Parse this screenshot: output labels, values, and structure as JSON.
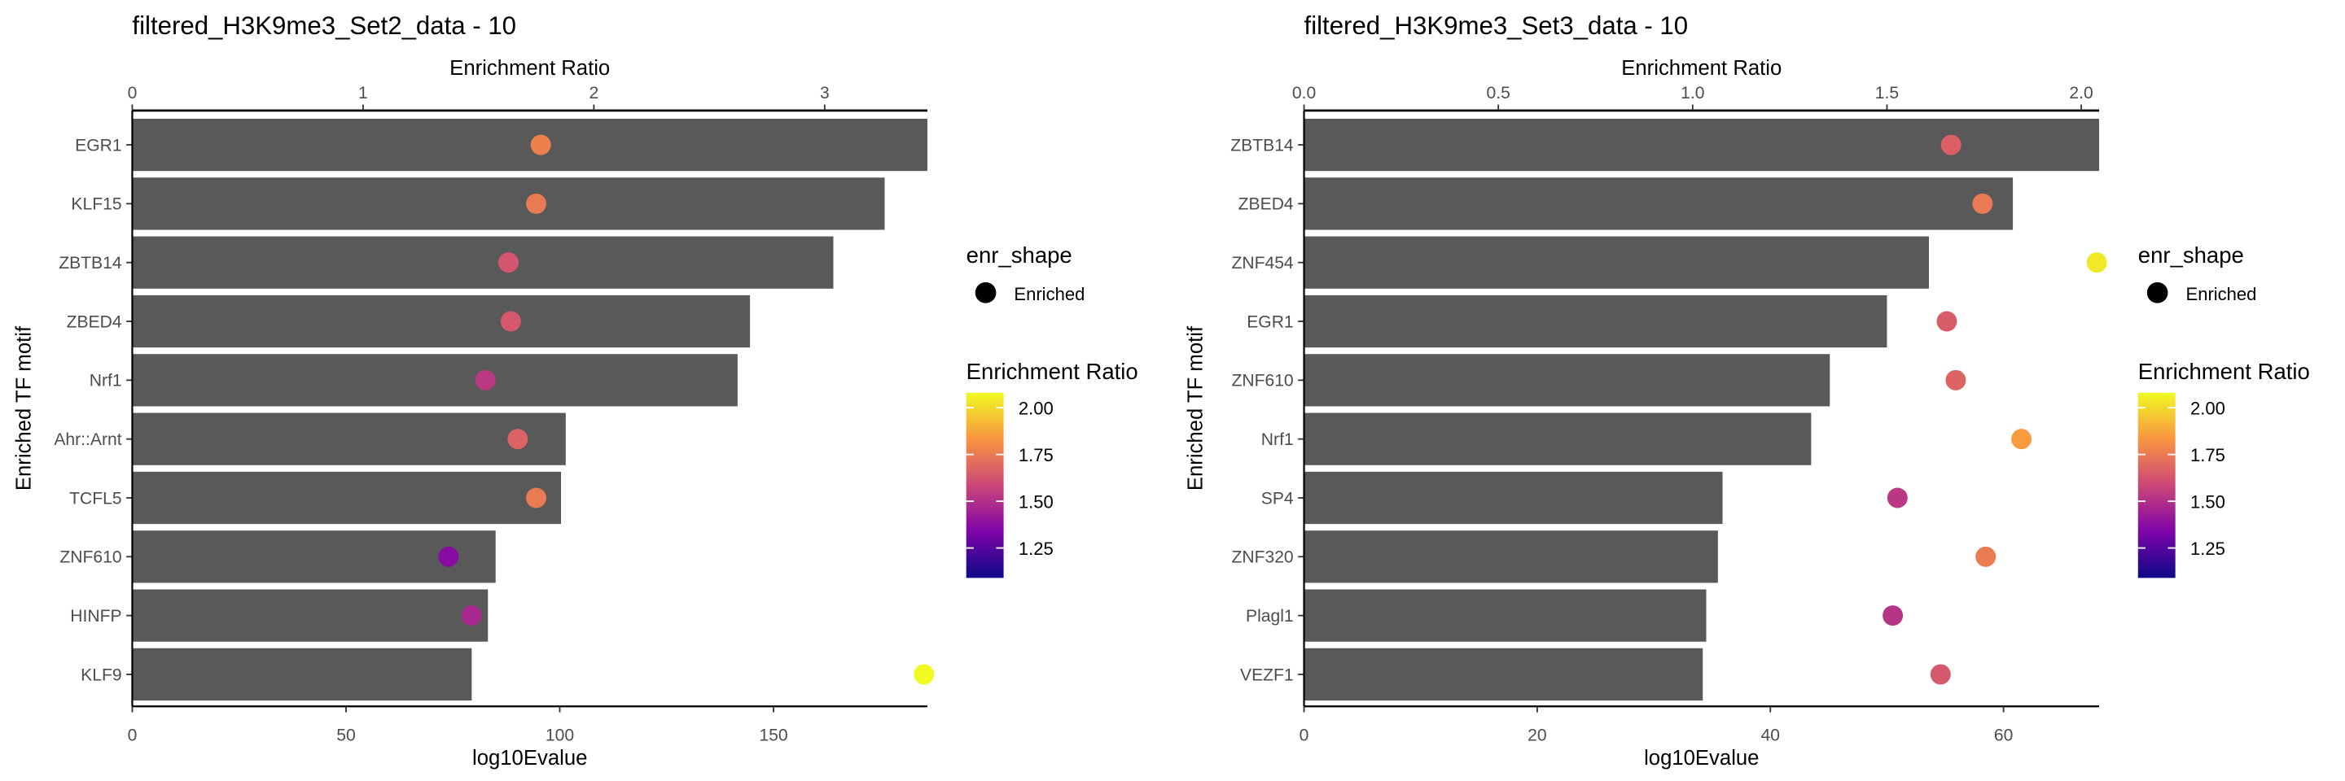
{
  "legend": {
    "shape_title": "enr_shape",
    "shape_label": "Enriched",
    "color_title": "Enrichment Ratio",
    "color_ticks": [
      "2.00",
      "1.75",
      "1.50",
      "1.25"
    ],
    "color_tick_values": [
      2.0,
      1.75,
      1.5,
      1.25
    ],
    "color_range": [
      1.09,
      2.08
    ],
    "palette": [
      "#0d0887",
      "#7e03a8",
      "#cc4778",
      "#f89540",
      "#f0f921"
    ]
  },
  "chart_data": [
    {
      "type": "bar",
      "title": "filtered_H3K9me3_Set2_data - 10",
      "xlabel": "log10Evalue",
      "ylabel": "Enriched TF motif",
      "x2label": "Enrichment Ratio",
      "xlim": [
        0,
        186
      ],
      "x2lim": [
        0,
        3.445
      ],
      "xticks": [
        "0",
        "50",
        "100",
        "150"
      ],
      "xtick_values": [
        0,
        50,
        100,
        150
      ],
      "x2ticks": [
        "0",
        "1",
        "2",
        "3"
      ],
      "x2tick_values": [
        0,
        1,
        2,
        3
      ],
      "categories": [
        "EGR1",
        "KLF15",
        "ZBTB14",
        "ZBED4",
        "Nrf1",
        "Ahr::Arnt",
        "TCFL5",
        "ZNF610",
        "HINFP",
        "KLF9"
      ],
      "values": [
        186,
        176,
        164,
        144.5,
        141.6,
        101.4,
        100.3,
        85,
        83.2,
        79.4
      ],
      "enrichment_ratio": [
        1.77,
        1.75,
        1.63,
        1.64,
        1.53,
        1.67,
        1.75,
        1.37,
        1.47,
        3.43
      ],
      "bar_color": "#595959"
    },
    {
      "type": "bar",
      "title": "filtered_H3K9me3_Set3_data - 10",
      "xlabel": "log10Evalue",
      "ylabel": "Enriched TF motif",
      "x2label": "Enrichment Ratio",
      "xlim": [
        0,
        68.2
      ],
      "x2lim": [
        0,
        2.046
      ],
      "xticks": [
        "0",
        "20",
        "40",
        "60"
      ],
      "xtick_values": [
        0,
        20,
        40,
        60
      ],
      "x2ticks": [
        "0.0",
        "0.5",
        "1.0",
        "1.5",
        "2.0"
      ],
      "x2tick_values": [
        0,
        0.5,
        1,
        1.5,
        2
      ],
      "categories": [
        "ZBTB14",
        "ZBED4",
        "ZNF454",
        "EGR1",
        "ZNF610",
        "Nrf1",
        "SP4",
        "ZNF320",
        "Plagl1",
        "VEZF1"
      ],
      "values": [
        68.2,
        60.8,
        53.6,
        50,
        45.1,
        43.5,
        35.9,
        35.5,
        34.5,
        34.2
      ],
      "enrichment_ratio": [
        1.665,
        1.746,
        2.04,
        1.654,
        1.677,
        1.846,
        1.527,
        1.754,
        1.515,
        1.638
      ],
      "bar_color": "#595959"
    }
  ]
}
